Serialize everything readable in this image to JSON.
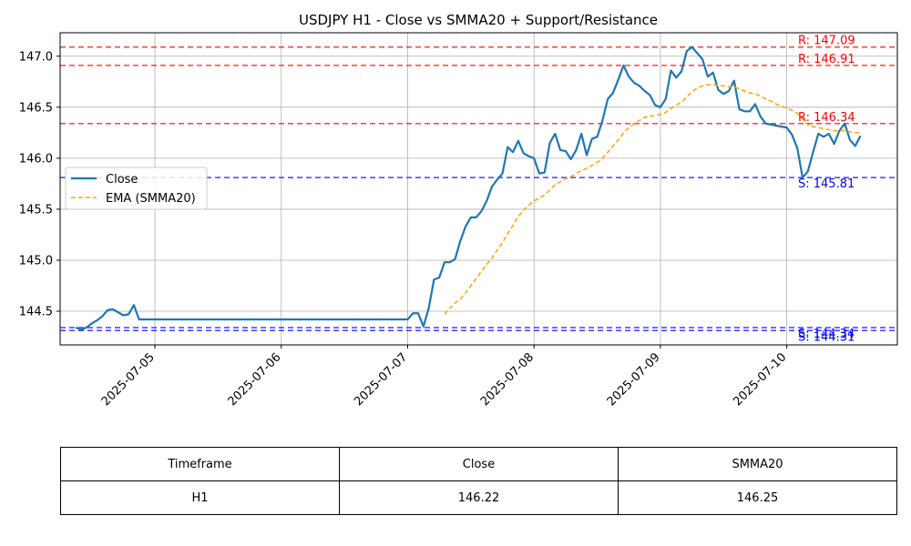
{
  "chart_data": {
    "type": "line",
    "title": "USDJPY H1 - Close vs SMMA20 + Support/Resistance",
    "xlabel": "",
    "ylabel": "",
    "grid": true,
    "legend_position": "center-left",
    "x_ticks": [
      "2025-07-05",
      "2025-07-06",
      "2025-07-07",
      "2025-07-08",
      "2025-07-09",
      "2025-07-10"
    ],
    "x_range": [
      "2025-07-04T06:00",
      "2025-07-10T21:00"
    ],
    "y_ticks": [
      144.5,
      145.0,
      145.5,
      146.0,
      146.5,
      147.0
    ],
    "y_range": [
      144.17,
      147.23
    ],
    "series": [
      {
        "name": "Close",
        "color": "#1f77b4",
        "style": "solid",
        "points": [
          [
            "2025-07-04T09:00",
            144.34
          ],
          [
            "2025-07-04T10:00",
            144.32
          ],
          [
            "2025-07-04T11:00",
            144.34
          ],
          [
            "2025-07-04T12:00",
            144.38
          ],
          [
            "2025-07-04T13:00",
            144.41
          ],
          [
            "2025-07-04T14:00",
            144.45
          ],
          [
            "2025-07-04T15:00",
            144.51
          ],
          [
            "2025-07-04T16:00",
            144.52
          ],
          [
            "2025-07-04T17:00",
            144.49
          ],
          [
            "2025-07-04T18:00",
            144.46
          ],
          [
            "2025-07-04T19:00",
            144.47
          ],
          [
            "2025-07-04T20:00",
            144.56
          ],
          [
            "2025-07-04T21:00",
            144.42
          ],
          [
            "2025-07-07T00:00",
            144.42
          ],
          [
            "2025-07-07T01:00",
            144.48
          ],
          [
            "2025-07-07T02:00",
            144.48
          ],
          [
            "2025-07-07T03:00",
            144.35
          ],
          [
            "2025-07-07T04:00",
            144.53
          ],
          [
            "2025-07-07T05:00",
            144.81
          ],
          [
            "2025-07-07T06:00",
            144.83
          ],
          [
            "2025-07-07T07:00",
            144.98
          ],
          [
            "2025-07-07T08:00",
            144.98
          ],
          [
            "2025-07-07T09:00",
            145.01
          ],
          [
            "2025-07-07T10:00",
            145.19
          ],
          [
            "2025-07-07T11:00",
            145.33
          ],
          [
            "2025-07-07T12:00",
            145.42
          ],
          [
            "2025-07-07T13:00",
            145.42
          ],
          [
            "2025-07-07T14:00",
            145.48
          ],
          [
            "2025-07-07T15:00",
            145.58
          ],
          [
            "2025-07-07T16:00",
            145.72
          ],
          [
            "2025-07-07T17:00",
            145.79
          ],
          [
            "2025-07-07T18:00",
            145.85
          ],
          [
            "2025-07-07T19:00",
            146.11
          ],
          [
            "2025-07-07T20:00",
            146.06
          ],
          [
            "2025-07-07T21:00",
            146.17
          ],
          [
            "2025-07-07T22:00",
            146.05
          ],
          [
            "2025-07-07T23:00",
            146.02
          ],
          [
            "2025-07-08T00:00",
            146.0
          ],
          [
            "2025-07-08T01:00",
            145.85
          ],
          [
            "2025-07-08T02:00",
            145.86
          ],
          [
            "2025-07-08T03:00",
            146.15
          ],
          [
            "2025-07-08T04:00",
            146.24
          ],
          [
            "2025-07-08T05:00",
            146.08
          ],
          [
            "2025-07-08T06:00",
            146.07
          ],
          [
            "2025-07-08T07:00",
            145.99
          ],
          [
            "2025-07-08T08:00",
            146.08
          ],
          [
            "2025-07-08T09:00",
            146.24
          ],
          [
            "2025-07-08T10:00",
            146.03
          ],
          [
            "2025-07-08T11:00",
            146.19
          ],
          [
            "2025-07-08T12:00",
            146.21
          ],
          [
            "2025-07-08T13:00",
            146.37
          ],
          [
            "2025-07-08T14:00",
            146.58
          ],
          [
            "2025-07-08T15:00",
            146.64
          ],
          [
            "2025-07-08T16:00",
            146.77
          ],
          [
            "2025-07-08T17:00",
            146.91
          ],
          [
            "2025-07-08T18:00",
            146.8
          ],
          [
            "2025-07-08T19:00",
            146.74
          ],
          [
            "2025-07-08T20:00",
            146.71
          ],
          [
            "2025-07-08T21:00",
            146.66
          ],
          [
            "2025-07-08T22:00",
            146.62
          ],
          [
            "2025-07-08T23:00",
            146.52
          ],
          [
            "2025-07-09T00:00",
            146.5
          ],
          [
            "2025-07-09T01:00",
            146.58
          ],
          [
            "2025-07-09T02:00",
            146.86
          ],
          [
            "2025-07-09T03:00",
            146.79
          ],
          [
            "2025-07-09T04:00",
            146.85
          ],
          [
            "2025-07-09T05:00",
            147.05
          ],
          [
            "2025-07-09T06:00",
            147.09
          ],
          [
            "2025-07-09T07:00",
            147.03
          ],
          [
            "2025-07-09T08:00",
            146.97
          ],
          [
            "2025-07-09T09:00",
            146.8
          ],
          [
            "2025-07-09T10:00",
            146.84
          ],
          [
            "2025-07-09T11:00",
            146.67
          ],
          [
            "2025-07-09T12:00",
            146.63
          ],
          [
            "2025-07-09T13:00",
            146.66
          ],
          [
            "2025-07-09T14:00",
            146.76
          ],
          [
            "2025-07-09T15:00",
            146.48
          ],
          [
            "2025-07-09T16:00",
            146.46
          ],
          [
            "2025-07-09T17:00",
            146.46
          ],
          [
            "2025-07-09T18:00",
            146.53
          ],
          [
            "2025-07-09T19:00",
            146.41
          ],
          [
            "2025-07-09T20:00",
            146.34
          ],
          [
            "2025-07-09T21:00",
            146.33
          ],
          [
            "2025-07-09T22:00",
            146.32
          ],
          [
            "2025-07-09T23:00",
            146.31
          ],
          [
            "2025-07-10T00:00",
            146.3
          ],
          [
            "2025-07-10T01:00",
            146.23
          ],
          [
            "2025-07-10T02:00",
            146.1
          ],
          [
            "2025-07-10T03:00",
            145.81
          ],
          [
            "2025-07-10T04:00",
            145.87
          ],
          [
            "2025-07-10T05:00",
            146.06
          ],
          [
            "2025-07-10T06:00",
            146.24
          ],
          [
            "2025-07-10T07:00",
            146.21
          ],
          [
            "2025-07-10T08:00",
            146.24
          ],
          [
            "2025-07-10T09:00",
            146.14
          ],
          [
            "2025-07-10T10:00",
            146.27
          ],
          [
            "2025-07-10T11:00",
            146.34
          ],
          [
            "2025-07-10T12:00",
            146.18
          ],
          [
            "2025-07-10T13:00",
            146.12
          ],
          [
            "2025-07-10T14:00",
            146.22
          ]
        ]
      },
      {
        "name": "EMA (SMMA20)",
        "color": "#ffa500",
        "style": "dashed",
        "points": [
          [
            "2025-07-07T07:00",
            144.47
          ],
          [
            "2025-07-07T08:00",
            144.53
          ],
          [
            "2025-07-07T09:00",
            144.58
          ],
          [
            "2025-07-07T10:00",
            144.62
          ],
          [
            "2025-07-07T11:00",
            144.68
          ],
          [
            "2025-07-07T12:00",
            144.75
          ],
          [
            "2025-07-07T13:00",
            144.82
          ],
          [
            "2025-07-07T14:00",
            144.89
          ],
          [
            "2025-07-07T15:00",
            144.96
          ],
          [
            "2025-07-07T16:00",
            145.02
          ],
          [
            "2025-07-07T17:00",
            145.1
          ],
          [
            "2025-07-07T18:00",
            145.17
          ],
          [
            "2025-07-07T19:00",
            145.26
          ],
          [
            "2025-07-07T20:00",
            145.34
          ],
          [
            "2025-07-07T21:00",
            145.43
          ],
          [
            "2025-07-07T22:00",
            145.49
          ],
          [
            "2025-07-07T23:00",
            145.54
          ],
          [
            "2025-07-08T00:00",
            145.58
          ],
          [
            "2025-07-08T01:00",
            145.61
          ],
          [
            "2025-07-08T02:00",
            145.64
          ],
          [
            "2025-07-08T03:00",
            145.69
          ],
          [
            "2025-07-08T04:00",
            145.74
          ],
          [
            "2025-07-08T05:00",
            145.77
          ],
          [
            "2025-07-08T06:00",
            145.8
          ],
          [
            "2025-07-08T07:00",
            145.82
          ],
          [
            "2025-07-08T08:00",
            145.85
          ],
          [
            "2025-07-08T09:00",
            145.88
          ],
          [
            "2025-07-08T10:00",
            145.9
          ],
          [
            "2025-07-08T11:00",
            145.93
          ],
          [
            "2025-07-08T12:00",
            145.96
          ],
          [
            "2025-07-08T13:00",
            146.0
          ],
          [
            "2025-07-08T14:00",
            146.06
          ],
          [
            "2025-07-08T15:00",
            146.12
          ],
          [
            "2025-07-08T16:00",
            146.18
          ],
          [
            "2025-07-08T17:00",
            146.25
          ],
          [
            "2025-07-08T18:00",
            146.3
          ],
          [
            "2025-07-08T19:00",
            146.34
          ],
          [
            "2025-07-08T20:00",
            146.37
          ],
          [
            "2025-07-08T21:00",
            146.4
          ],
          [
            "2025-07-08T22:00",
            146.41
          ],
          [
            "2025-07-08T23:00",
            146.42
          ],
          [
            "2025-07-09T00:00",
            146.43
          ],
          [
            "2025-07-09T01:00",
            146.45
          ],
          [
            "2025-07-09T02:00",
            146.49
          ],
          [
            "2025-07-09T03:00",
            146.52
          ],
          [
            "2025-07-09T04:00",
            146.55
          ],
          [
            "2025-07-09T05:00",
            146.6
          ],
          [
            "2025-07-09T06:00",
            146.65
          ],
          [
            "2025-07-09T07:00",
            146.69
          ],
          [
            "2025-07-09T08:00",
            146.71
          ],
          [
            "2025-07-09T09:00",
            146.72
          ],
          [
            "2025-07-09T10:00",
            146.72
          ],
          [
            "2025-07-09T11:00",
            146.71
          ],
          [
            "2025-07-09T12:00",
            146.71
          ],
          [
            "2025-07-09T13:00",
            146.7
          ],
          [
            "2025-07-09T14:00",
            146.7
          ],
          [
            "2025-07-09T15:00",
            146.68
          ],
          [
            "2025-07-09T16:00",
            146.66
          ],
          [
            "2025-07-09T17:00",
            146.64
          ],
          [
            "2025-07-09T18:00",
            146.63
          ],
          [
            "2025-07-09T19:00",
            146.61
          ],
          [
            "2025-07-09T20:00",
            146.58
          ],
          [
            "2025-07-09T21:00",
            146.56
          ],
          [
            "2025-07-09T22:00",
            146.53
          ],
          [
            "2025-07-09T23:00",
            146.51
          ],
          [
            "2025-07-10T00:00",
            146.49
          ],
          [
            "2025-07-10T01:00",
            146.47
          ],
          [
            "2025-07-10T02:00",
            146.44
          ],
          [
            "2025-07-10T03:00",
            146.38
          ],
          [
            "2025-07-10T04:00",
            146.33
          ],
          [
            "2025-07-10T05:00",
            146.31
          ],
          [
            "2025-07-10T06:00",
            146.3
          ],
          [
            "2025-07-10T07:00",
            146.29
          ],
          [
            "2025-07-10T08:00",
            146.28
          ],
          [
            "2025-07-10T09:00",
            146.27
          ],
          [
            "2025-07-10T10:00",
            146.27
          ],
          [
            "2025-07-10T11:00",
            146.27
          ],
          [
            "2025-07-10T12:00",
            146.26
          ],
          [
            "2025-07-10T13:00",
            146.25
          ],
          [
            "2025-07-10T14:00",
            146.25
          ]
        ]
      }
    ],
    "levels": [
      {
        "label": "R: 147.09",
        "value": 147.09,
        "kind": "resistance",
        "color": "#ff0000"
      },
      {
        "label": "R: 146.91",
        "value": 146.91,
        "kind": "resistance",
        "color": "#ff0000"
      },
      {
        "label": "R: 146.34",
        "value": 146.34,
        "kind": "resistance",
        "color": "#ff0000"
      },
      {
        "label": "S: 145.81",
        "value": 145.81,
        "kind": "support",
        "color": "#0000ff"
      },
      {
        "label": "S: 144.34",
        "value": 144.34,
        "kind": "support",
        "color": "#0000ff"
      },
      {
        "label": "S: 144.31",
        "value": 144.31,
        "kind": "support",
        "color": "#0000ff"
      }
    ]
  },
  "table": {
    "headers": [
      "Timeframe",
      "Close",
      "SMMA20"
    ],
    "rows": [
      [
        "H1",
        "146.22",
        "146.25"
      ]
    ]
  }
}
